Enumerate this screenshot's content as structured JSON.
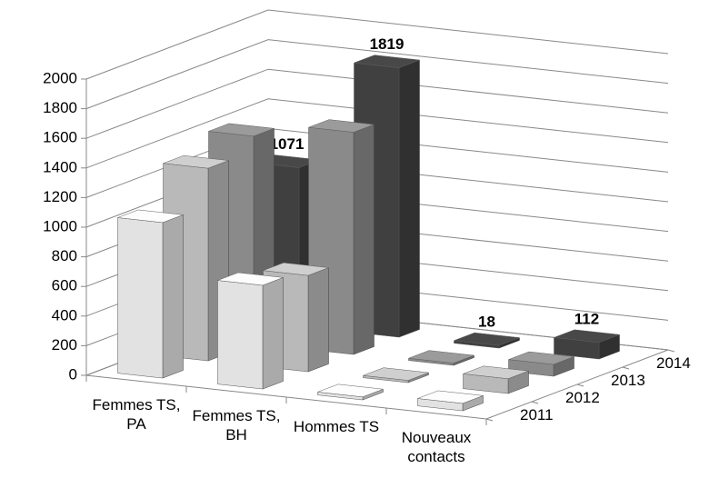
{
  "chart_data": {
    "type": "bar3d",
    "categories": [
      "Femmes TS, PA",
      "Femmes TS, BH",
      "Hommes TS",
      "Nouveaux contacts"
    ],
    "series": [
      {
        "name": "2011",
        "color": "#e2e2e2",
        "values": [
          1050,
          700,
          20,
          50
        ]
      },
      {
        "name": "2012",
        "color": "#b9b9b9",
        "values": [
          1300,
          650,
          15,
          100
        ]
      },
      {
        "name": "2013",
        "color": "#8a8a8a",
        "values": [
          1400,
          1500,
          15,
          80
        ]
      },
      {
        "name": "2014",
        "color": "#404040",
        "values": [
          1071,
          1819,
          18,
          112
        ],
        "data_labels": true
      }
    ],
    "ylim": [
      0,
      2000
    ],
    "yticks": [
      0,
      200,
      400,
      600,
      800,
      1000,
      1200,
      1400,
      1600,
      1800,
      2000
    ],
    "grid": true
  }
}
